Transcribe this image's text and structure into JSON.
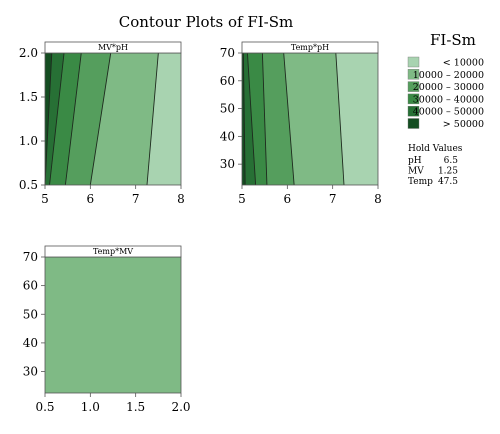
{
  "chart_data": {
    "type": "contour",
    "title": "Contour Plots of FI-Sm",
    "legend": {
      "title": "FI-Sm",
      "placement": "right",
      "entries": [
        {
          "label": "< 10000",
          "color": "#a8d3b0"
        },
        {
          "label": "10000 – 20000",
          "color": "#7fba85"
        },
        {
          "label": "20000 – 30000",
          "color": "#559e5d"
        },
        {
          "label": "30000 – 40000",
          "color": "#3a8a45"
        },
        {
          "label": "40000 – 50000",
          "color": "#277035"
        },
        {
          "label": "> 50000",
          "color": "#144d21"
        }
      ]
    },
    "hold_values": {
      "title": "Hold Values",
      "items": [
        {
          "name": "pH",
          "value": "6.5"
        },
        {
          "name": "MV",
          "value": "1.25"
        },
        {
          "name": "Temp",
          "value": "47.5"
        }
      ]
    },
    "panels": [
      {
        "label": "MV*pH",
        "xlim": [
          5,
          8
        ],
        "ylim": [
          0.5,
          2.0
        ],
        "xticks": [
          "5",
          "6",
          "7",
          "8"
        ],
        "yticks": [
          "0.5",
          "1.0",
          "1.5",
          "2.0"
        ],
        "boundaries": [
          {
            "level": 10000,
            "bottom_x": 7.25,
            "top_x": 7.5
          },
          {
            "level": 20000,
            "bottom_x": 6.0,
            "top_x": 6.45
          },
          {
            "level": 30000,
            "bottom_x": 5.45,
            "top_x": 5.8
          },
          {
            "level": 40000,
            "bottom_x": 5.1,
            "top_x": 5.42
          },
          {
            "level": 50000,
            "bottom_x": 5.0,
            "top_x": 5.15
          }
        ]
      },
      {
        "label": "Temp*pH",
        "xlim": [
          5,
          8
        ],
        "ylim": [
          22.5,
          70
        ],
        "xticks": [
          "5",
          "6",
          "7",
          "8"
        ],
        "yticks": [
          "30",
          "40",
          "50",
          "60",
          "70"
        ],
        "boundaries": [
          {
            "level": 10000,
            "bottom_x": 7.25,
            "top_x": 7.07
          },
          {
            "level": 20000,
            "bottom_x": 6.15,
            "top_x": 5.92
          },
          {
            "level": 30000,
            "bottom_x": 5.55,
            "top_x": 5.45
          },
          {
            "level": 40000,
            "bottom_x": 5.3,
            "top_x": 5.12
          },
          {
            "level": 50000,
            "bottom_x": 5.07,
            "top_x": 5.03
          }
        ]
      },
      {
        "label": "Temp*MV",
        "xlim": [
          0.5,
          2.0
        ],
        "ylim": [
          22.5,
          70
        ],
        "xticks": [
          "0.5",
          "1.0",
          "1.5",
          "2.0"
        ],
        "yticks": [
          "30",
          "40",
          "50",
          "60",
          "70"
        ],
        "uniform_level": "10000 – 20000",
        "boundaries": []
      }
    ]
  }
}
